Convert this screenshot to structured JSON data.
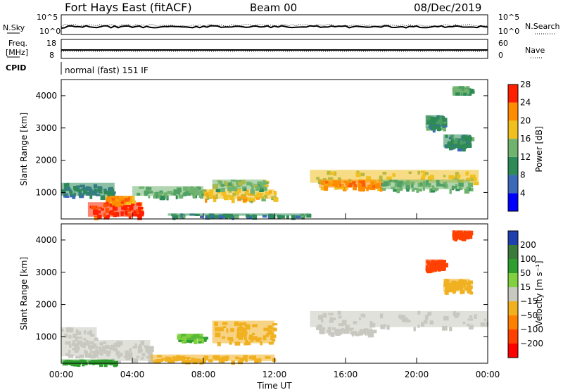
{
  "header": {
    "station": "Fort Hays East (fitACF)",
    "beam": "Beam 00",
    "date": "08/Dec/2019"
  },
  "top_panels": {
    "nsky_label": "N.Sky",
    "nsky_ticks": [
      "10^5",
      "10^0"
    ],
    "nsearch_label": "N.Search",
    "nsearch_ticks": [
      "10^5",
      "10^0"
    ],
    "freq_label_1": "Freq.",
    "freq_label_2": "[MHz]",
    "freq_ticks": [
      "18",
      "8"
    ],
    "nave_label": "Nave",
    "nave_ticks": [
      "60",
      "0"
    ],
    "cpid_label": "CPID",
    "cpid_text": "normal (fast) 151 IF"
  },
  "chart_data": [
    {
      "type": "heatmap",
      "name": "power",
      "ylabel": "Slant Range [km]",
      "yticks": [
        1000,
        2000,
        3000,
        4000
      ],
      "ylim": [
        180,
        4500
      ],
      "xlim": [
        0,
        24
      ],
      "colorbar_label": "Power [dB]",
      "colorbar_ticks": [
        4,
        8,
        12,
        16,
        20,
        24,
        28
      ],
      "colorbar_range": [
        0,
        30
      ],
      "colorbar_colors": [
        "#0000ff",
        "#3a6ab8",
        "#2e8b57",
        "#6fb36f",
        "#f0c020",
        "#ff8c00",
        "#ff2000"
      ],
      "regions": [
        {
          "t": [
            0.0,
            3.0
          ],
          "r": [
            900,
            1300
          ],
          "v": 8
        },
        {
          "t": [
            1.5,
            4.5
          ],
          "r": [
            250,
            700
          ],
          "v": 26
        },
        {
          "t": [
            2.5,
            4.0
          ],
          "r": [
            700,
            900
          ],
          "v": 22
        },
        {
          "t": [
            4.0,
            8.0
          ],
          "r": [
            900,
            1200
          ],
          "v": 12
        },
        {
          "t": [
            8.0,
            12.0
          ],
          "r": [
            800,
            1100
          ],
          "v": 18
        },
        {
          "t": [
            8.5,
            11.5
          ],
          "r": [
            1100,
            1400
          ],
          "v": 14
        },
        {
          "t": [
            6.0,
            14.0
          ],
          "r": [
            280,
            350
          ],
          "v": 10
        },
        {
          "t": [
            14.0,
            23.5
          ],
          "r": [
            1300,
            1700
          ],
          "v": 16
        },
        {
          "t": [
            14.5,
            18.0
          ],
          "r": [
            1150,
            1400
          ],
          "v": 22
        },
        {
          "t": [
            18.0,
            23.0
          ],
          "r": [
            1100,
            1400
          ],
          "v": 12
        },
        {
          "t": [
            21.5,
            23.0
          ],
          "r": [
            2400,
            2800
          ],
          "v": 10
        },
        {
          "t": [
            20.5,
            21.5
          ],
          "r": [
            3000,
            3400
          ],
          "v": 10
        },
        {
          "t": [
            22.0,
            23.0
          ],
          "r": [
            4100,
            4300
          ],
          "v": 12
        }
      ]
    },
    {
      "type": "heatmap",
      "name": "velocity",
      "ylabel": "Slant Range [km]",
      "yticks": [
        1000,
        2000,
        3000,
        4000
      ],
      "ylim": [
        180,
        4500
      ],
      "xlim": [
        0,
        24
      ],
      "xticks": [
        "00:00",
        "04:00",
        "08:00",
        "12:00",
        "16:00",
        "20:00",
        "00:00"
      ],
      "xlabel": "Time UT",
      "colorbar_label": "Velocity [m s⁻¹]",
      "colorbar_ticks": [
        "200",
        "100",
        "50",
        "15",
        "−15",
        "−50",
        "−100",
        "−200"
      ],
      "colorbar_colors": [
        "#2040b0",
        "#3a7a3a",
        "#2e9e2e",
        "#80d040",
        "#c8c8c0",
        "#f0b020",
        "#ff8000",
        "#ff4000",
        "#ff0000"
      ],
      "regions": [
        {
          "t": [
            0.0,
            2.0
          ],
          "r": [
            400,
            1300
          ],
          "v": 0
        },
        {
          "t": [
            2.0,
            5.0
          ],
          "r": [
            250,
            900
          ],
          "v": 0
        },
        {
          "t": [
            6.5,
            8.0
          ],
          "r": [
            900,
            1100
          ],
          "v": 30
        },
        {
          "t": [
            8.5,
            12.0
          ],
          "r": [
            800,
            1500
          ],
          "v": -40
        },
        {
          "t": [
            5.0,
            12.0
          ],
          "r": [
            250,
            450
          ],
          "v": -20
        },
        {
          "t": [
            14.0,
            24.0
          ],
          "r": [
            1300,
            1800
          ],
          "v": 0
        },
        {
          "t": [
            14.5,
            17.5
          ],
          "r": [
            1100,
            1300
          ],
          "v": 0
        },
        {
          "t": [
            0.0,
            3.0
          ],
          "r": [
            200,
            300
          ],
          "v": 40
        },
        {
          "t": [
            21.5,
            23.0
          ],
          "r": [
            2400,
            2800
          ],
          "v": -40
        },
        {
          "t": [
            20.5,
            21.5
          ],
          "r": [
            3100,
            3400
          ],
          "v": -120
        },
        {
          "t": [
            22.0,
            23.0
          ],
          "r": [
            4100,
            4300
          ],
          "v": -150
        }
      ]
    }
  ]
}
